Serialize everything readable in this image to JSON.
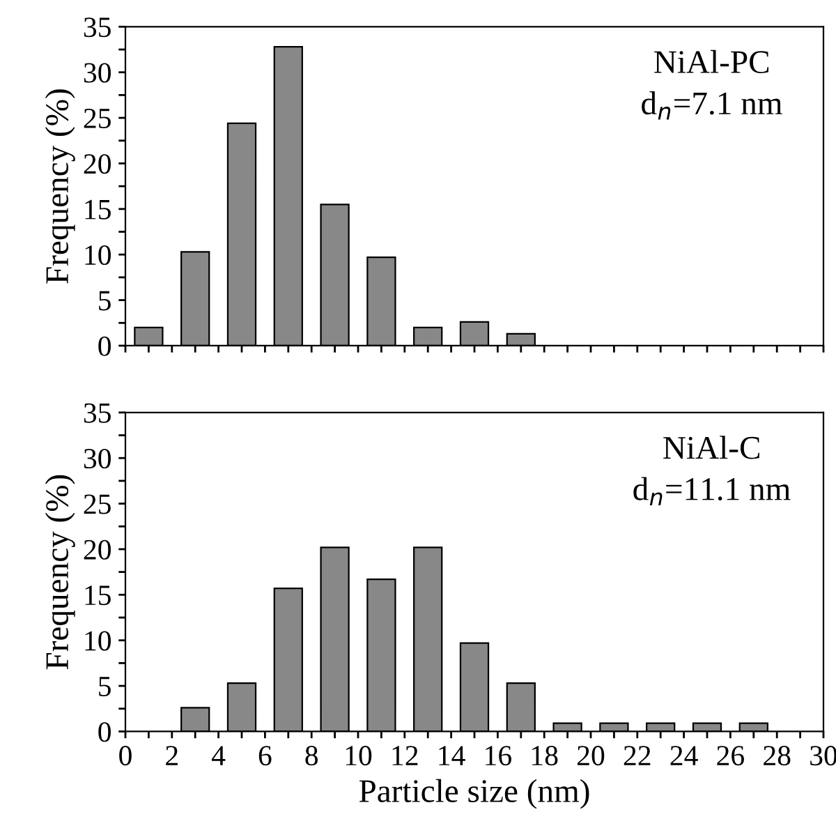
{
  "chart_data": [
    {
      "type": "bar",
      "x": [
        1,
        3,
        5,
        7,
        9,
        11,
        13,
        15,
        17
      ],
      "values": [
        2.0,
        10.3,
        24.4,
        32.8,
        15.5,
        9.7,
        2.0,
        2.6,
        1.3
      ],
      "color": "#888888",
      "ylabel": "Frequency (%)",
      "annotations": [
        "NiAl-PC",
        "d$_{n}$=7.1 nm"
      ],
      "xlim": [
        0,
        30
      ],
      "ylim": [
        0,
        35
      ],
      "xticks": [
        {
          "value": 0,
          "label": null
        },
        {
          "value": 1,
          "label": null
        },
        {
          "value": 2,
          "label": null
        },
        {
          "value": 3,
          "label": null
        },
        {
          "value": 4,
          "label": null
        },
        {
          "value": 5,
          "label": null
        },
        {
          "value": 6,
          "label": null
        },
        {
          "value": 7,
          "label": null
        },
        {
          "value": 8,
          "label": null
        },
        {
          "value": 9,
          "label": null
        },
        {
          "value": 10,
          "label": null
        },
        {
          "value": 11,
          "label": null
        },
        {
          "value": 12,
          "label": null
        },
        {
          "value": 13,
          "label": null
        },
        {
          "value": 14,
          "label": null
        },
        {
          "value": 15,
          "label": null
        },
        {
          "value": 16,
          "label": null
        },
        {
          "value": 17,
          "label": null
        },
        {
          "value": 18,
          "label": null
        },
        {
          "value": 19,
          "label": null
        },
        {
          "value": 20,
          "label": null
        },
        {
          "value": 21,
          "label": null
        },
        {
          "value": 22,
          "label": null
        },
        {
          "value": 23,
          "label": null
        },
        {
          "value": 24,
          "label": null
        },
        {
          "value": 25,
          "label": null
        },
        {
          "value": 26,
          "label": null
        },
        {
          "value": 27,
          "label": null
        },
        {
          "value": 28,
          "label": null
        },
        {
          "value": 29,
          "label": null
        },
        {
          "value": 30,
          "label": null
        }
      ],
      "yticks": [
        0,
        {
          "value": 2.5,
          "label": null
        },
        5,
        {
          "value": 7.5,
          "label": null
        },
        10,
        {
          "value": 12.5,
          "label": null
        },
        15,
        {
          "value": 17.5,
          "label": null
        },
        20,
        {
          "value": 22.5,
          "label": null
        },
        25,
        {
          "value": 27.5,
          "label": null
        },
        30,
        {
          "value": 32.5,
          "label": null
        },
        35
      ],
      "tick_labels": "y"
    },
    {
      "type": "bar",
      "x": [
        3,
        5,
        7,
        9,
        11,
        13,
        15,
        17,
        19,
        21,
        23,
        25,
        27
      ],
      "values": [
        2.6,
        5.3,
        15.7,
        20.2,
        16.7,
        20.2,
        9.7,
        5.3,
        0.9,
        0.9,
        0.9,
        0.9,
        0.9
      ],
      "color": "#888888",
      "xlabel": "Particle size (nm)",
      "ylabel": "Frequency (%)",
      "annotations": [
        "NiAl-C",
        "d$_{n}$=11.1 nm"
      ],
      "xlim": [
        0,
        30
      ],
      "ylim": [
        0,
        35
      ],
      "xticks": [
        0,
        {
          "value": 1,
          "label": null
        },
        2,
        {
          "value": 3,
          "label": null
        },
        4,
        {
          "value": 5,
          "label": null
        },
        6,
        {
          "value": 7,
          "label": null
        },
        8,
        {
          "value": 9,
          "label": null
        },
        10,
        {
          "value": 11,
          "label": null
        },
        12,
        {
          "value": 13,
          "label": null
        },
        14,
        {
          "value": 15,
          "label": null
        },
        16,
        {
          "value": 17,
          "label": null
        },
        18,
        {
          "value": 19,
          "label": null
        },
        20,
        {
          "value": 21,
          "label": null
        },
        22,
        {
          "value": 23,
          "label": null
        },
        24,
        {
          "value": 25,
          "label": null
        },
        26,
        {
          "value": 27,
          "label": null
        },
        28,
        {
          "value": 29,
          "label": null
        },
        30
      ],
      "yticks": [
        0,
        {
          "value": 2.5,
          "label": null
        },
        5,
        {
          "value": 7.5,
          "label": null
        },
        10,
        {
          "value": 12.5,
          "label": null
        },
        15,
        {
          "value": 17.5,
          "label": null
        },
        20,
        {
          "value": 22.5,
          "label": null
        },
        25,
        {
          "value": 27.5,
          "label": null
        },
        30,
        {
          "value": 32.5,
          "label": null
        },
        35
      ]
    }
  ]
}
